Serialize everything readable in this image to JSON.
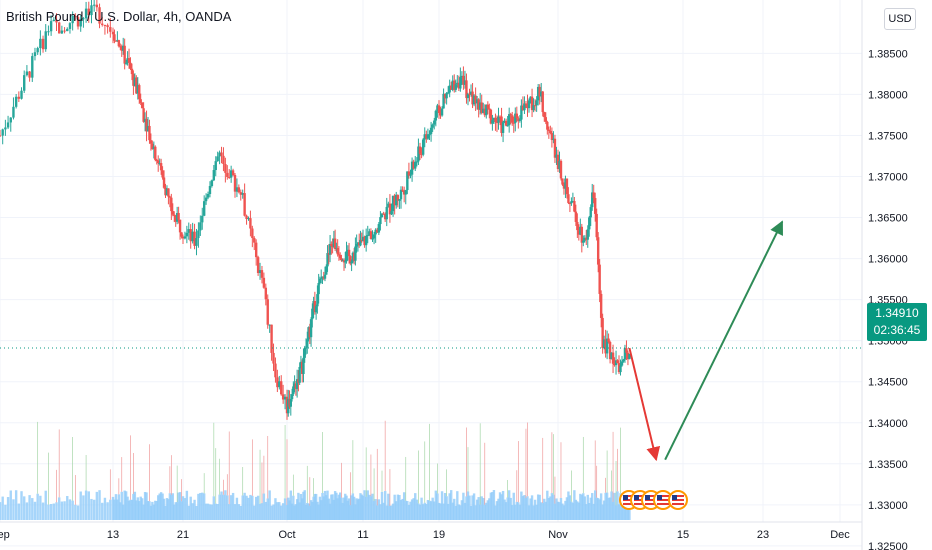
{
  "header": {
    "title": "British Pound / U.S. Dollar, 4h, OANDA",
    "currency": "USD"
  },
  "last_price": {
    "value": "1.34910",
    "countdown": "02:36:45"
  },
  "colors": {
    "up": "#26a69a",
    "down": "#ef5350",
    "volume": "#90caf9",
    "price_line": "#089981",
    "arrow_down": "#e53935",
    "arrow_up": "#2e8b57"
  },
  "chart_data": {
    "type": "candlestick",
    "title": "British Pound / U.S. Dollar, 4h, OANDA",
    "ylim": [
      1.3245,
      1.3915
    ],
    "y_ticks": [
      "1.32500",
      "1.33000",
      "1.33500",
      "1.34000",
      "1.34500",
      "1.35000",
      "1.35500",
      "1.36000",
      "1.36500",
      "1.37000",
      "1.37500",
      "1.38000",
      "1.38500"
    ],
    "x_ticks": [
      "Sep",
      "13",
      "21",
      "Oct",
      "11",
      "19",
      "Nov",
      "15",
      "23",
      "Dec"
    ],
    "last_price": 1.3491,
    "price_path": [
      {
        "date": "Sep 06",
        "price": 1.375
      },
      {
        "date": "Sep 09",
        "price": 1.388
      },
      {
        "date": "Sep 12",
        "price": 1.39
      },
      {
        "date": "Sep 15",
        "price": 1.383
      },
      {
        "date": "Sep 17",
        "price": 1.376
      },
      {
        "date": "Sep 20",
        "price": 1.365
      },
      {
        "date": "Sep 22",
        "price": 1.362
      },
      {
        "date": "Sep 24",
        "price": 1.373
      },
      {
        "date": "Sep 26",
        "price": 1.368
      },
      {
        "date": "Sep 28",
        "price": 1.356
      },
      {
        "date": "Sep 29",
        "price": 1.346
      },
      {
        "date": "Sep 30",
        "price": 1.342
      },
      {
        "date": "Oct 02",
        "price": 1.347
      },
      {
        "date": "Oct 04",
        "price": 1.356
      },
      {
        "date": "Oct 06",
        "price": 1.362
      },
      {
        "date": "Oct 08",
        "price": 1.36
      },
      {
        "date": "Oct 10",
        "price": 1.362
      },
      {
        "date": "Oct 12",
        "price": 1.365
      },
      {
        "date": "Oct 14",
        "price": 1.368
      },
      {
        "date": "Oct 16",
        "price": 1.373
      },
      {
        "date": "Oct 18",
        "price": 1.378
      },
      {
        "date": "Oct 20",
        "price": 1.382
      },
      {
        "date": "Oct 22",
        "price": 1.379
      },
      {
        "date": "Oct 25",
        "price": 1.376
      },
      {
        "date": "Oct 27",
        "price": 1.378
      },
      {
        "date": "Oct 29",
        "price": 1.38
      },
      {
        "date": "Nov 01",
        "price": 1.368
      },
      {
        "date": "Nov 03",
        "price": 1.362
      },
      {
        "date": "Nov 04",
        "price": 1.368
      },
      {
        "date": "Nov 05",
        "price": 1.35
      },
      {
        "date": "Nov 07",
        "price": 1.347
      },
      {
        "date": "Nov 08",
        "price": 1.3491
      }
    ],
    "annotations": [
      {
        "type": "arrow",
        "color": "#e53935",
        "from": {
          "date": "Nov 08",
          "price": 1.3491
        },
        "to": {
          "date": "Nov 11",
          "price": 1.3355
        }
      },
      {
        "type": "arrow",
        "color": "#2e8b57",
        "from": {
          "date": "Nov 12",
          "price": 1.3355
        },
        "to": {
          "date": "Nov 24",
          "price": 1.3645
        }
      }
    ],
    "volume": "shown as light-blue histogram at bottom",
    "grid": true
  }
}
